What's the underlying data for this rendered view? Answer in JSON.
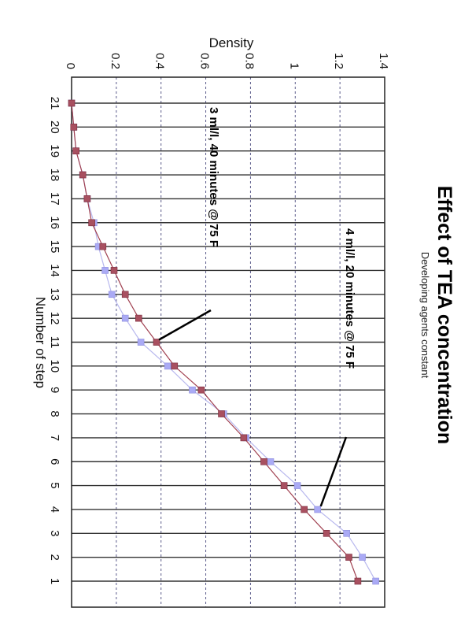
{
  "chart_data": {
    "type": "line",
    "title": "Effect of TEA concentration",
    "subtitle": "Developing agents constant",
    "xlabel": "Number of step",
    "ylabel": "Density",
    "categories": [
      "1",
      "2",
      "3",
      "4",
      "5",
      "6",
      "7",
      "8",
      "9",
      "10",
      "11",
      "12",
      "13",
      "14",
      "15",
      "16",
      "17",
      "18",
      "19",
      "20",
      "21"
    ],
    "ylim": [
      0,
      1.4
    ],
    "yticks": [
      "0",
      "0.2",
      "0.4",
      "0.6",
      "0.8",
      "1",
      "1.2",
      "1.4"
    ],
    "grid": true,
    "series": [
      {
        "name": "",
        "color": "#a04050",
        "marker_color": "#a85060",
        "values": [
          1.28,
          1.24,
          1.14,
          1.04,
          0.95,
          0.86,
          0.77,
          0.67,
          0.58,
          0.46,
          0.38,
          0.3,
          0.24,
          0.19,
          0.14,
          0.09,
          0.07,
          0.05,
          0.02,
          0.01,
          0.0
        ]
      },
      {
        "name": "",
        "color": "#b8b8ee",
        "marker_color": "#aaaaf5",
        "values": [
          1.36,
          1.3,
          1.23,
          1.1,
          1.01,
          0.89,
          0.78,
          0.68,
          0.54,
          0.43,
          0.31,
          0.24,
          0.18,
          0.15,
          0.12,
          0.1,
          0.07,
          0.05,
          0.02,
          0.01,
          0.0
        ]
      }
    ],
    "annotations": [
      {
        "text": "4 ml/l, 20 minutes @ 75 F",
        "category": "4",
        "series": 1
      },
      {
        "text": "3 ml/l, 40 minutes @ 75 F",
        "category": "11",
        "series": 0
      }
    ]
  }
}
